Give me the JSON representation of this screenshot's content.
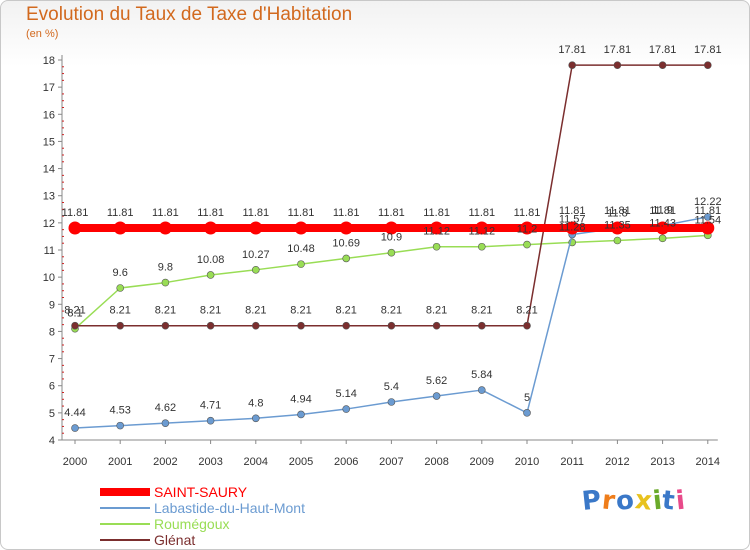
{
  "header": {
    "title": "Evolution du Taux de Taxe d'Habitation",
    "subtitle": "(en %)"
  },
  "logo": {
    "text": "Proxiti",
    "colors": [
      "#3a78c8",
      "#ef7d1a",
      "#3a78c8",
      "#e8c21e",
      "#6aaa2a",
      "#3a78c8",
      "#e84a8a"
    ]
  },
  "chart_data": {
    "type": "line",
    "title": "Evolution du Taux de Taxe d'Habitation",
    "ylabel": "(en %)",
    "xlabel": "",
    "x": [
      "2000",
      "2001",
      "2002",
      "2003",
      "2004",
      "2005",
      "2006",
      "2007",
      "2008",
      "2009",
      "2010",
      "2011",
      "2012",
      "2013",
      "2014"
    ],
    "ylim": [
      4,
      18
    ],
    "yticks": [
      4,
      5,
      6,
      7,
      8,
      9,
      10,
      11,
      12,
      13,
      14,
      15,
      16,
      17,
      18
    ],
    "grid": false,
    "legend_position": "bottom-left",
    "series": [
      {
        "name": "SAINT-SAURY",
        "color": "#ff0000",
        "values": [
          11.81,
          11.81,
          11.81,
          11.81,
          11.81,
          11.81,
          11.81,
          11.81,
          11.81,
          11.81,
          11.81,
          11.81,
          11.81,
          11.81,
          11.81
        ],
        "labels": [
          "11.81",
          "11.81",
          "11.81",
          "11.81",
          "11.81",
          "11.81",
          "11.81",
          "11.81",
          "11.81",
          "11.81",
          "11.81",
          "11.81",
          "11.81",
          "11.81",
          "11.81"
        ]
      },
      {
        "name": "Labastide-du-Haut-Mont",
        "color": "#6b9bd1",
        "values": [
          4.44,
          4.53,
          4.62,
          4.71,
          4.8,
          4.94,
          5.14,
          5.4,
          5.62,
          5.84,
          5,
          11.57,
          11.8,
          11.9,
          12.22
        ],
        "labels": [
          "4.44",
          "4.53",
          "4.62",
          "4.71",
          "4.8",
          "4.94",
          "5.14",
          "5.4",
          "5.62",
          "5.84",
          "5",
          "11.57",
          "11.8",
          "11.9",
          "12.22"
        ]
      },
      {
        "name": "Roumégoux",
        "color": "#99dd55",
        "values": [
          8.1,
          9.6,
          9.8,
          10.08,
          10.27,
          10.48,
          10.69,
          10.9,
          11.12,
          11.12,
          11.2,
          11.28,
          11.35,
          11.43,
          11.54
        ],
        "labels": [
          "8.1",
          "9.6",
          "9.8",
          "10.08",
          "10.27",
          "10.48",
          "10.69",
          "10.9",
          "11.12",
          "11.12",
          "11.2",
          "11.28",
          "11.35",
          "11.43",
          "11.54"
        ]
      },
      {
        "name": "Glénat",
        "color": "#7b2e2e",
        "values": [
          8.21,
          8.21,
          8.21,
          8.21,
          8.21,
          8.21,
          8.21,
          8.21,
          8.21,
          8.21,
          8.21,
          17.81,
          17.81,
          17.81,
          17.81
        ],
        "labels": [
          "8.21",
          "8.21",
          "8.21",
          "8.21",
          "8.21",
          "8.21",
          "8.21",
          "8.21",
          "8.21",
          "8.21",
          "8.21",
          "17.81",
          "17.81",
          "17.81",
          "17.81"
        ]
      }
    ]
  }
}
